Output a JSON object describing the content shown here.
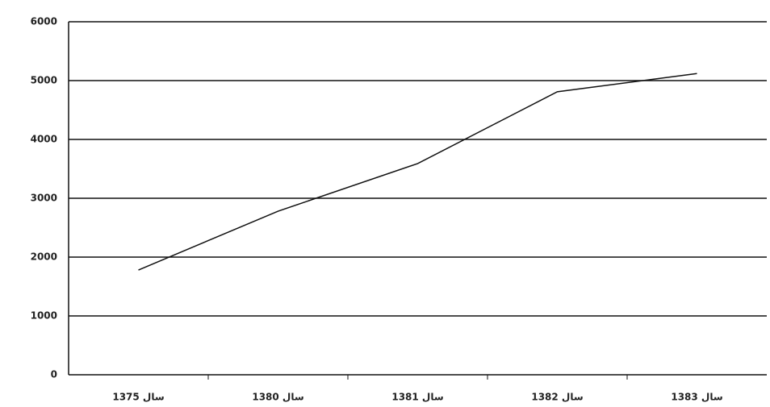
{
  "chart_data": {
    "type": "line",
    "categories": [
      "سال 1375",
      "سال 1380",
      "سال 1381",
      "سال 1382",
      "سال 1383"
    ],
    "series": [
      {
        "color": "#111111",
        "values": [
          1780,
          2780,
          3590,
          4810,
          5120
        ]
      }
    ],
    "ylim": [
      0,
      6000
    ],
    "yticks": [
      0,
      1000,
      2000,
      3000,
      4000,
      5000,
      6000
    ],
    "grid": true
  }
}
